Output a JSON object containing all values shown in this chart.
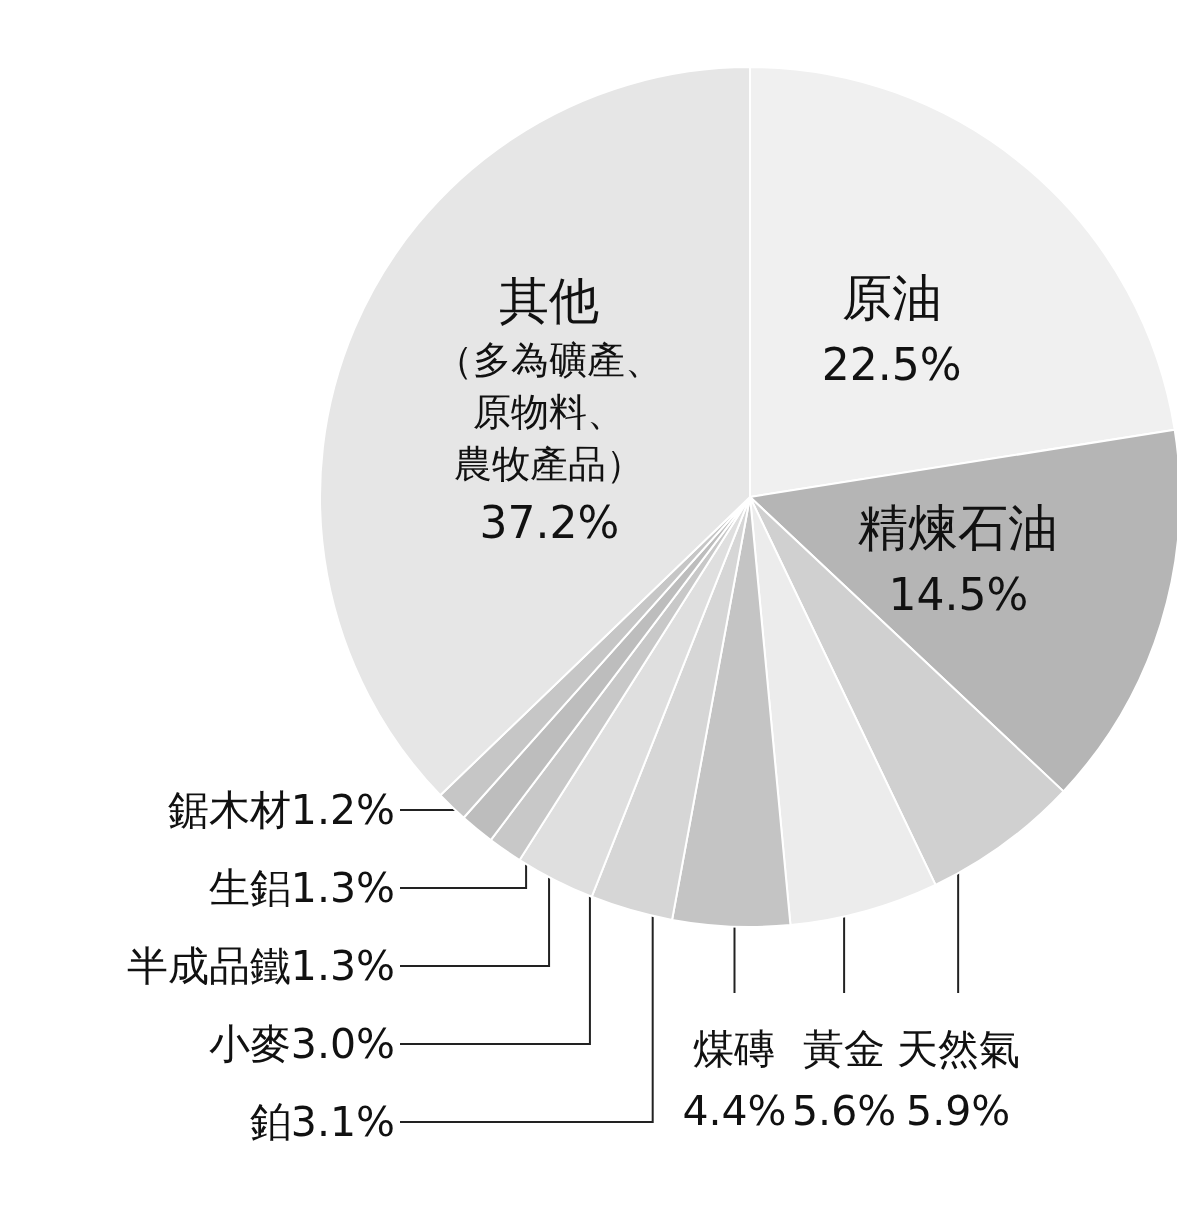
{
  "chart_data": {
    "type": "pie",
    "categories": [
      "原油",
      "精煉石油",
      "天然氣",
      "黃金",
      "煤磚",
      "鉑",
      "小麥",
      "半成品鐵",
      "生鋁",
      "鋸木材",
      "其他"
    ],
    "values": [
      22.5,
      14.5,
      5.9,
      5.6,
      4.4,
      3.1,
      3.0,
      1.3,
      1.3,
      1.2,
      37.2
    ],
    "value_labels": [
      "22.5%",
      "14.5%",
      "5.9%",
      "5.6%",
      "4.4%",
      "3.1%",
      "3.0%",
      "1.3%",
      "1.3%",
      "1.2%",
      "37.2%"
    ],
    "colors": [
      "#f0f0f0",
      "#b5b5b5",
      "#d0d0d0",
      "#ececec",
      "#c4c4c4",
      "#d6d6d6",
      "#dfdfdf",
      "#c8c8c8",
      "#bdbdbd",
      "#c6c6c6",
      "#e6e6e6"
    ],
    "annotations": [
      "（多為礦產、原物料、農牧產品）"
    ]
  }
}
